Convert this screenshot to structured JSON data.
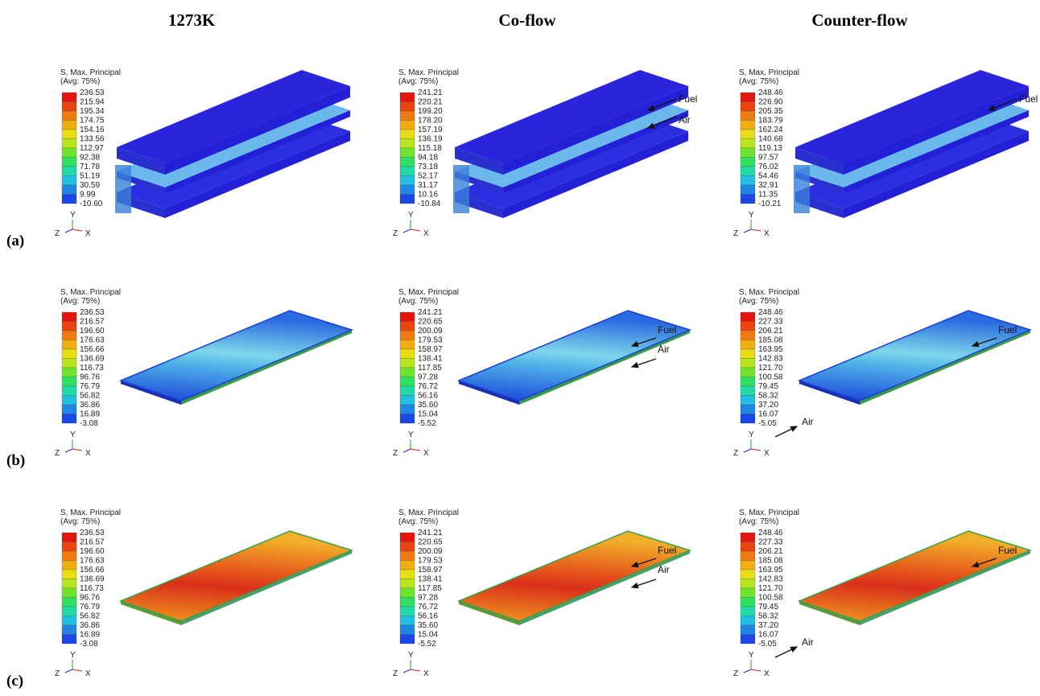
{
  "header": {
    "columns": [
      "1273K",
      "Co-flow",
      "Counter-flow"
    ]
  },
  "rows": [
    {
      "label": "(a)",
      "panels": [
        {
          "legend_title": "S, Max. Principal",
          "legend_subtitle": "(Avg: 75%)",
          "legend_values": [
            "236.53",
            "215.94",
            "195.34",
            "174.75",
            "154.16",
            "133.56",
            "112.97",
            "92.38",
            "71.78",
            "51.19",
            "30.59",
            "9.99",
            "-10.60"
          ],
          "triad": [
            "Y",
            "Z",
            "X"
          ],
          "flow_labels": []
        },
        {
          "legend_title": "S, Max. Principal",
          "legend_subtitle": "(Avg: 75%)",
          "legend_values": [
            "241.21",
            "220.21",
            "199.20",
            "178.20",
            "157.19",
            "136.19",
            "115.18",
            "94.18",
            "73.18",
            "52.17",
            "31.17",
            "10.16",
            "-10.84"
          ],
          "triad": [
            "Y",
            "Z",
            "X"
          ],
          "flow_labels": [
            "Fuel",
            "Air"
          ]
        },
        {
          "legend_title": "S, Max. Principal",
          "legend_subtitle": "(Avg: 75%)",
          "legend_values": [
            "248.46",
            "226.90",
            "205.35",
            "183.79",
            "162.24",
            "140.68",
            "119.13",
            "97.57",
            "76.02",
            "54.46",
            "32.91",
            "11.35",
            "-10.21"
          ],
          "triad": [
            "Y",
            "Z",
            "X"
          ],
          "flow_labels": [
            "Fuel"
          ]
        }
      ]
    },
    {
      "label": "(b)",
      "panels": [
        {
          "legend_title": "S, Max. Principal",
          "legend_subtitle": "(Avg: 75%)",
          "legend_values": [
            "236.53",
            "216.57",
            "196.60",
            "176.63",
            "156.66",
            "136.69",
            "116.73",
            "96.76",
            "76.79",
            "56.82",
            "36.86",
            "16.89",
            "-3.08"
          ],
          "triad": [
            "Y",
            "Z",
            "X"
          ],
          "flow_labels": []
        },
        {
          "legend_title": "S, Max. Principal",
          "legend_subtitle": "(Avg: 75%)",
          "legend_values": [
            "241.21",
            "220.65",
            "200.09",
            "179.53",
            "158.97",
            "138.41",
            "117.85",
            "97.28",
            "76.72",
            "56.16",
            "35.60",
            "15.04",
            "-5.52"
          ],
          "triad": [
            "Y",
            "Z",
            "X"
          ],
          "flow_labels": [
            "Fuel",
            "Air"
          ]
        },
        {
          "legend_title": "S, Max. Principal",
          "legend_subtitle": "(Avg: 75%)",
          "legend_values": [
            "248.46",
            "227.33",
            "206.21",
            "185.08",
            "163.95",
            "142.83",
            "121.70",
            "100.58",
            "79.45",
            "58.32",
            "37.20",
            "16.07",
            "-5.05"
          ],
          "triad": [
            "Y",
            "Z",
            "X"
          ],
          "flow_labels": [
            "Fuel",
            "Air"
          ]
        }
      ]
    },
    {
      "label": "(c)",
      "panels": [
        {
          "legend_title": "S, Max. Principal",
          "legend_subtitle": "(Avg: 75%)",
          "legend_values": [
            "236.53",
            "216.57",
            "196.60",
            "176.63",
            "156.66",
            "136.69",
            "116.73",
            "96.76",
            "76.79",
            "56.82",
            "36.86",
            "16.89",
            "-3.08"
          ],
          "triad": [
            "Y",
            "Z",
            "X"
          ],
          "flow_labels": []
        },
        {
          "legend_title": "S, Max. Principal",
          "legend_subtitle": "(Avg: 75%)",
          "legend_values": [
            "241.21",
            "220.65",
            "200.09",
            "179.53",
            "158.97",
            "138.41",
            "117.85",
            "97.28",
            "76.72",
            "56.16",
            "35.60",
            "15.04",
            "-5.52"
          ],
          "triad": [
            "Y",
            "Z",
            "X"
          ],
          "flow_labels": [
            "Fuel",
            "Air"
          ]
        },
        {
          "legend_title": "S, Max. Principal",
          "legend_subtitle": "(Avg: 75%)",
          "legend_values": [
            "248.46",
            "227.33",
            "206.21",
            "185.08",
            "163.95",
            "142.83",
            "121.70",
            "100.58",
            "79.45",
            "58.32",
            "37.20",
            "16.07",
            "-5.05"
          ],
          "triad": [
            "Y",
            "Z",
            "X"
          ],
          "flow_labels": [
            "Fuel",
            "Air"
          ]
        }
      ]
    }
  ]
}
